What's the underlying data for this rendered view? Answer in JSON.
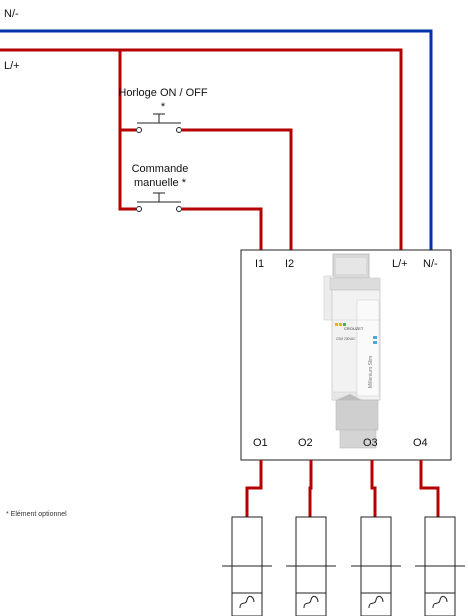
{
  "lines": {
    "neutral_label": "N/-",
    "live_label": "L/+",
    "neutral_color": "#0033aa",
    "live_color": "#b50000"
  },
  "switches": {
    "clock_label": "Horloge ON / OFF *",
    "manual_label": "Commande manuelle *"
  },
  "module": {
    "input_terminals": [
      "I1",
      "I2",
      "L/+",
      "N/-"
    ],
    "output_terminals": [
      "O1",
      "O2",
      "O3",
      "O4"
    ],
    "device_brand": "CROUZET",
    "device_model": "CSM 230VAC",
    "device_series": "Millenium Slim"
  },
  "footnote": "* Elément optionnel",
  "loads": {
    "count": 4,
    "icon": "tilde-wave-icon"
  }
}
